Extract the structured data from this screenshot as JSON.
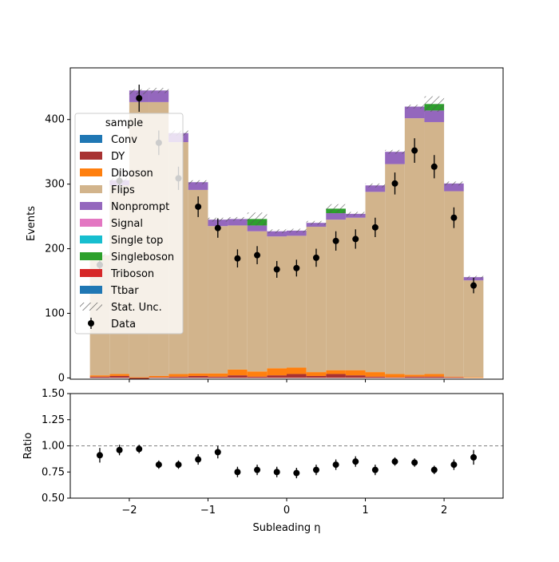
{
  "chart_data": [
    {
      "type": "bar",
      "stacked": true,
      "xlabel": "",
      "ylabel": "Events",
      "xlim": [
        -2.75,
        2.75
      ],
      "ylim": [
        -2,
        480
      ],
      "yticks": [
        0,
        100,
        200,
        300,
        400
      ],
      "bin_edges": [
        -2.5,
        -2.25,
        -2.0,
        -1.75,
        -1.5,
        -1.25,
        -1.0,
        -0.75,
        -0.5,
        -0.25,
        0.0,
        0.25,
        0.5,
        0.75,
        1.0,
        1.25,
        1.5,
        1.75,
        2.0,
        2.25,
        2.5
      ],
      "series": [
        {
          "name": "Conv",
          "color": "#1f77b4",
          "values": [
            0,
            0,
            0,
            0,
            0,
            0,
            0,
            0,
            0,
            0,
            0,
            0,
            0,
            0,
            0,
            0,
            0,
            0,
            0,
            0
          ]
        },
        {
          "name": "DY",
          "color": "#a83232",
          "values": [
            2,
            3,
            -2,
            1,
            2,
            3,
            2,
            4,
            2,
            4,
            6,
            3,
            6,
            4,
            2,
            1,
            2,
            2,
            1,
            0
          ]
        },
        {
          "name": "Diboson",
          "color": "#ff7f0e",
          "values": [
            2,
            3,
            1,
            2,
            4,
            4,
            5,
            9,
            8,
            11,
            10,
            6,
            6,
            8,
            7,
            5,
            3,
            4,
            1,
            1
          ]
        },
        {
          "name": "Flips",
          "color": "#d2b48c",
          "values": [
            186,
            292,
            426,
            424,
            359,
            284,
            228,
            223,
            217,
            204,
            204,
            225,
            233,
            236,
            279,
            325,
            397,
            390,
            287,
            150
          ]
        },
        {
          "name": "Nonprompt",
          "color": "#9467bd",
          "values": [
            0,
            8,
            18,
            18,
            14,
            12,
            10,
            10,
            9,
            8,
            8,
            6,
            10,
            6,
            10,
            19,
            18,
            18,
            12,
            5
          ]
        },
        {
          "name": "Signal",
          "color": "#e377c2",
          "values": [
            0,
            0,
            0,
            0,
            0,
            0,
            0,
            0,
            0,
            0,
            0,
            0,
            0,
            0,
            0,
            0,
            0,
            0,
            0,
            0
          ]
        },
        {
          "name": "Single top",
          "color": "#17becf",
          "values": [
            0,
            0,
            0,
            0,
            0,
            0,
            0,
            0,
            0,
            0,
            0,
            0,
            0,
            0,
            0,
            0,
            0,
            0,
            0,
            0
          ]
        },
        {
          "name": "Singleboson",
          "color": "#2ca02c",
          "values": [
            0,
            0,
            0,
            0,
            0,
            0,
            0,
            0,
            10,
            0,
            0,
            0,
            7,
            0,
            0,
            0,
            0,
            10,
            0,
            0
          ]
        },
        {
          "name": "Triboson",
          "color": "#d62728",
          "values": [
            0,
            0,
            0,
            0,
            0,
            0,
            0,
            0,
            0,
            0,
            0,
            0,
            0,
            0,
            0,
            0,
            0,
            0,
            0,
            0
          ]
        },
        {
          "name": "Ttbar",
          "color": "#1f77b4",
          "values": [
            0,
            0,
            0,
            0,
            0,
            0,
            0,
            0,
            0,
            0,
            0,
            0,
            0,
            0,
            0,
            0,
            0,
            0,
            0,
            0
          ]
        }
      ],
      "stat_unc": [
        2,
        3,
        4,
        4,
        4,
        3,
        3,
        3,
        10,
        3,
        3,
        3,
        7,
        3,
        3,
        3,
        3,
        12,
        3,
        2
      ],
      "data": {
        "name": "Data",
        "x": [
          -2.375,
          -2.125,
          -1.875,
          -1.625,
          -1.375,
          -1.125,
          -0.875,
          -0.625,
          -0.375,
          -0.125,
          0.125,
          0.375,
          0.625,
          0.875,
          1.125,
          1.375,
          1.625,
          1.875,
          2.125,
          2.375
        ],
        "y": [
          175,
          305,
          433,
          364,
          309,
          265,
          232,
          185,
          190,
          168,
          170,
          186,
          212,
          215,
          233,
          301,
          352,
          327,
          248,
          143
        ],
        "yerr": [
          13,
          17,
          21,
          19,
          18,
          16,
          15,
          14,
          14,
          13,
          13,
          14,
          15,
          15,
          15,
          17,
          19,
          18,
          16,
          12
        ]
      },
      "legend": {
        "title": "sample",
        "position": "upper-left",
        "entries": [
          "Conv",
          "DY",
          "Diboson",
          "Flips",
          "Nonprompt",
          "Signal",
          "Single top",
          "Singleboson",
          "Triboson",
          "Ttbar",
          "Stat. Unc.",
          "Data"
        ]
      }
    },
    {
      "type": "scatter",
      "xlabel": "Subleading η",
      "ylabel": "Ratio",
      "xlim": [
        -2.75,
        2.75
      ],
      "ylim": [
        0.5,
        1.5
      ],
      "yticks": [
        0.5,
        0.75,
        1.0,
        1.25,
        1.5
      ],
      "ytick_labels": [
        "0.50",
        "0.75",
        "1.00",
        "1.25",
        "1.50"
      ],
      "xticks": [
        -2,
        -1,
        0,
        1,
        2
      ],
      "xtick_labels": [
        "−2",
        "−1",
        "0",
        "1",
        "2"
      ],
      "reference_line": 1.0,
      "x": [
        -2.375,
        -2.125,
        -1.875,
        -1.625,
        -1.375,
        -1.125,
        -0.875,
        -0.625,
        -0.375,
        -0.125,
        0.125,
        0.375,
        0.625,
        0.875,
        1.125,
        1.375,
        1.625,
        1.875,
        2.125,
        2.375
      ],
      "y": [
        0.91,
        0.96,
        0.97,
        0.82,
        0.82,
        0.87,
        0.94,
        0.75,
        0.77,
        0.75,
        0.74,
        0.77,
        0.82,
        0.85,
        0.77,
        0.85,
        0.84,
        0.77,
        0.82,
        0.89
      ],
      "yerr": [
        0.07,
        0.05,
        0.04,
        0.04,
        0.04,
        0.05,
        0.06,
        0.05,
        0.05,
        0.05,
        0.05,
        0.05,
        0.05,
        0.05,
        0.05,
        0.04,
        0.04,
        0.04,
        0.05,
        0.07
      ]
    }
  ]
}
